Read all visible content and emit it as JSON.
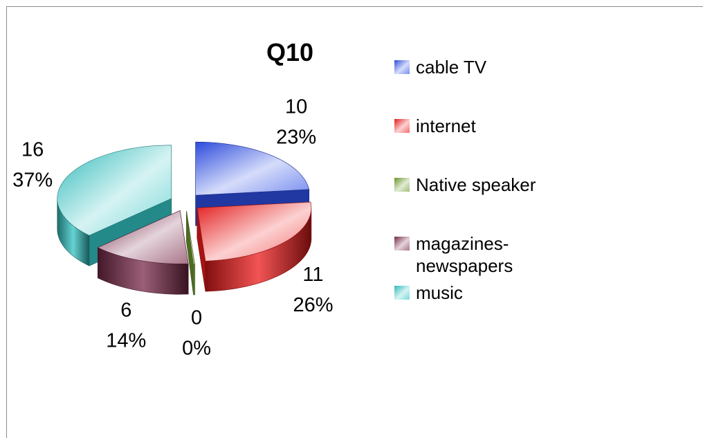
{
  "chart_data": {
    "type": "pie",
    "title": "Q10",
    "categories": [
      "cable TV",
      "internet",
      "Native speaker",
      "magazines-newspapers",
      "music"
    ],
    "values": [
      10,
      11,
      0,
      6,
      16
    ],
    "percent_labels": [
      "23%",
      "26%",
      "0%",
      "14%",
      "37%"
    ],
    "value_labels": [
      "10",
      "11",
      "0",
      "6",
      "16"
    ],
    "legend": {
      "position": "right",
      "entries": [
        {
          "lines": [
            "cable TV"
          ]
        },
        {
          "lines": [
            "internet"
          ]
        },
        {
          "lines": [
            "Native speaker"
          ]
        },
        {
          "lines": [
            "magazines-",
            "newspapers"
          ]
        },
        {
          "lines": [
            "music"
          ]
        }
      ]
    },
    "colors": [
      "#2f4fe8",
      "#ee1b1b",
      "#6f9a2c",
      "#7a2a4a",
      "#33c3c3"
    ],
    "exploded": true,
    "style": "3d"
  }
}
